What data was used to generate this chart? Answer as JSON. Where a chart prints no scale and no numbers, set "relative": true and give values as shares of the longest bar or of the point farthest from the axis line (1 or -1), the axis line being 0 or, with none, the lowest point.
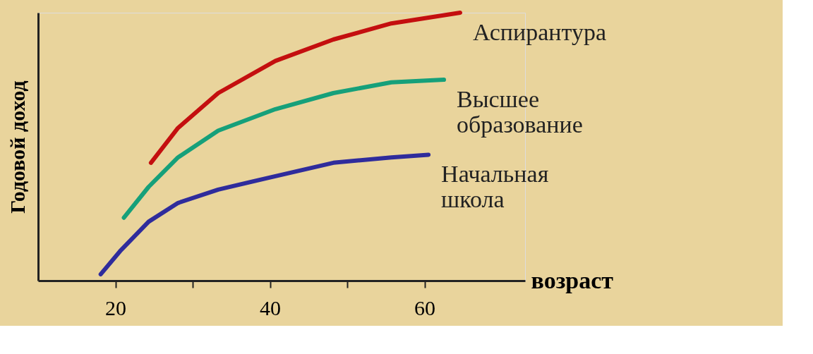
{
  "chart_data": {
    "type": "line",
    "relative": true,
    "ylabel": "Годовой доход",
    "xlabel": "возраст",
    "xlim": [
      10,
      73
    ],
    "xticks": [
      20,
      {
        "value": 30,
        "label": null
      },
      40,
      {
        "value": 50,
        "label": null
      },
      60
    ],
    "grid": false,
    "marker": "none",
    "line_style": "solid",
    "series": [
      {
        "name": "Аспирантура",
        "color": "#c40f0f",
        "x": [
          24.6,
          28.1,
          33.3,
          40.7,
          48.2,
          55.7,
          64.6
        ],
        "values": [
          0.44,
          0.57,
          0.7,
          0.82,
          0.9,
          0.96,
          1.0
        ]
      },
      {
        "name": "Высшее образование",
        "color": "#16a07a",
        "x": [
          21.1,
          24.3,
          28.1,
          33.3,
          40.7,
          48.2,
          55.7,
          62.5
        ],
        "values": [
          0.235,
          0.35,
          0.46,
          0.56,
          0.64,
          0.7,
          0.74,
          0.75
        ]
      },
      {
        "name": "Начальная школа",
        "color": "#2f2c9c",
        "x": [
          18.1,
          20.6,
          24.3,
          28.1,
          33.3,
          40.7,
          48.2,
          55.7,
          60.5
        ],
        "values": [
          0.024,
          0.11,
          0.22,
          0.29,
          0.34,
          0.39,
          0.44,
          0.46,
          0.47
        ]
      }
    ]
  }
}
